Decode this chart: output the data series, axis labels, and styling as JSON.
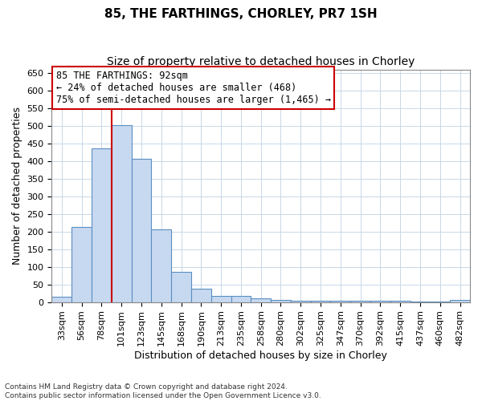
{
  "title": "85, THE FARTHINGS, CHORLEY, PR7 1SH",
  "subtitle": "Size of property relative to detached houses in Chorley",
  "xlabel": "Distribution of detached houses by size in Chorley",
  "ylabel": "Number of detached properties",
  "categories": [
    "33sqm",
    "56sqm",
    "78sqm",
    "101sqm",
    "123sqm",
    "145sqm",
    "168sqm",
    "190sqm",
    "213sqm",
    "235sqm",
    "258sqm",
    "280sqm",
    "302sqm",
    "325sqm",
    "347sqm",
    "370sqm",
    "392sqm",
    "415sqm",
    "437sqm",
    "460sqm",
    "482sqm"
  ],
  "values": [
    15,
    213,
    437,
    503,
    407,
    207,
    85,
    38,
    18,
    18,
    11,
    5,
    4,
    4,
    4,
    4,
    4,
    4,
    2,
    2,
    5
  ],
  "bar_color": "#c7d9f0",
  "bar_edge_color": "#5a8fc2",
  "vline_x_index": 3,
  "vline_color": "#cc0000",
  "annotation_line1": "85 THE FARTHINGS: 92sqm",
  "annotation_line2": "← 24% of detached houses are smaller (468)",
  "annotation_line3": "75% of semi-detached houses are larger (1,465) →",
  "annotation_box_color": "#ffffff",
  "annotation_box_edge_color": "#cc0000",
  "ylim": [
    0,
    660
  ],
  "yticks": [
    0,
    50,
    100,
    150,
    200,
    250,
    300,
    350,
    400,
    450,
    500,
    550,
    600,
    650
  ],
  "background_color": "#ffffff",
  "grid_color": "#c8d8e8",
  "title_fontsize": 11,
  "subtitle_fontsize": 10,
  "xlabel_fontsize": 9,
  "ylabel_fontsize": 9,
  "tick_fontsize": 8,
  "annot_fontsize": 8.5,
  "footer_text": "Contains HM Land Registry data © Crown copyright and database right 2024.\nContains public sector information licensed under the Open Government Licence v3.0."
}
